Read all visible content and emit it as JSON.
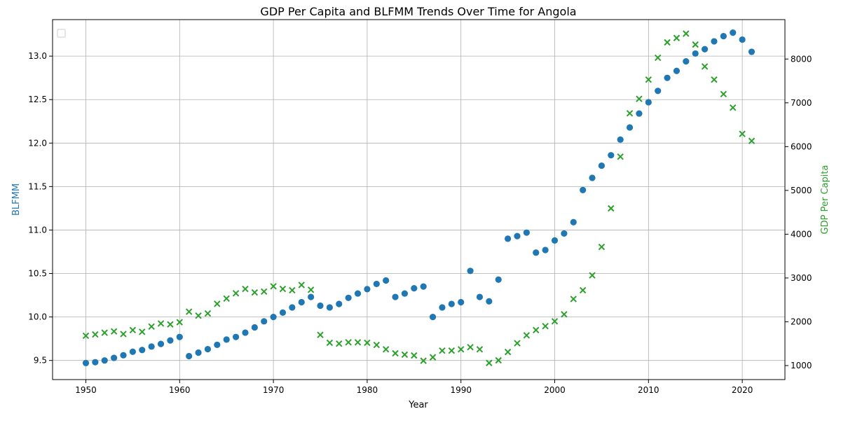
{
  "chart_data": {
    "type": "scatter",
    "title": "GDP Per Capita and BLFMM Trends Over Time for Angola",
    "xlabel": "Year",
    "ylabel_left": "BLFMM",
    "ylabel_right": "GDP Per Capita",
    "xlim": [
      1946.45,
      2124.55
    ],
    "ylim_left": [
      9.28,
      13.42
    ],
    "ylim_right": [
      680,
      8900
    ],
    "x_ticks": [
      1950,
      1960,
      1970,
      1980,
      1990,
      2000,
      2010,
      2020
    ],
    "y_left_ticks": [
      9.5,
      10.0,
      10.5,
      11.0,
      11.5,
      12.0,
      12.5,
      13.0
    ],
    "y_right_ticks": [
      1000,
      2000,
      3000,
      4000,
      5000,
      6000,
      7000,
      8000
    ],
    "grid": true,
    "legend": "top-left (empty)",
    "colors": {
      "blfmm": "#1f77b4",
      "gdp": "#2ca02c"
    },
    "series": [
      {
        "axis": "left",
        "marker": "circle",
        "x": [
          1950,
          1951,
          1952,
          1953,
          1954,
          1955,
          1956,
          1957,
          1958,
          1959,
          1960,
          1961,
          1962,
          1963,
          1964,
          1965,
          1966,
          1967,
          1968,
          1969,
          1970,
          1971,
          1972,
          1973,
          1974,
          1975,
          1976,
          1977,
          1978,
          1979,
          1980,
          1981,
          1982,
          1983,
          1984,
          1985,
          1986,
          1987,
          1988,
          1989,
          1990,
          1991,
          1992,
          1993,
          1994,
          1995,
          1996,
          1997,
          1998,
          1999,
          2000,
          2001,
          2002,
          2003,
          2004,
          2005,
          2006,
          2007,
          2008,
          2009,
          2010,
          2011,
          2012,
          2013,
          2014,
          2015,
          2016,
          2017,
          2018,
          2019,
          2020,
          2021
        ],
        "values": [
          9.47,
          9.48,
          9.5,
          9.53,
          9.56,
          9.6,
          9.62,
          9.66,
          9.69,
          9.73,
          9.77,
          9.55,
          9.59,
          9.63,
          9.68,
          9.74,
          9.77,
          9.82,
          9.88,
          9.95,
          10.0,
          10.05,
          10.11,
          10.17,
          10.23,
          10.13,
          10.11,
          10.15,
          10.22,
          10.27,
          10.32,
          10.38,
          10.42,
          10.23,
          10.27,
          10.33,
          10.35,
          10.0,
          10.11,
          10.15,
          10.17,
          10.53,
          10.23,
          10.18,
          10.43,
          10.9,
          10.93,
          10.97,
          10.74,
          10.77,
          10.88,
          10.96,
          11.09,
          11.46,
          11.6,
          11.74,
          11.86,
          12.04,
          12.18,
          12.34,
          12.47,
          12.6,
          12.75,
          12.83,
          12.94,
          13.03,
          13.08,
          13.17,
          13.23,
          13.27,
          13.19,
          13.05
        ]
      },
      {
        "axis": "right",
        "marker": "x",
        "x": [
          1950,
          1951,
          1952,
          1953,
          1954,
          1955,
          1956,
          1957,
          1958,
          1959,
          1960,
          1961,
          1962,
          1963,
          1964,
          1965,
          1966,
          1967,
          1968,
          1969,
          1970,
          1971,
          1972,
          1973,
          1974,
          1975,
          1976,
          1977,
          1978,
          1979,
          1980,
          1981,
          1982,
          1983,
          1984,
          1985,
          1986,
          1987,
          1988,
          1989,
          1990,
          1991,
          1992,
          1993,
          1994,
          1995,
          1996,
          1997,
          1998,
          1999,
          2000,
          2001,
          2002,
          2003,
          2004,
          2005,
          2006,
          2007,
          2008,
          2009,
          2010,
          2011,
          2012,
          2013,
          2014,
          2015,
          2016,
          2017,
          2018,
          2019,
          2020,
          2021
        ],
        "values": [
          1680,
          1710,
          1750,
          1780,
          1720,
          1810,
          1770,
          1890,
          1960,
          1940,
          1990,
          2230,
          2140,
          2190,
          2410,
          2530,
          2650,
          2750,
          2670,
          2690,
          2810,
          2750,
          2720,
          2840,
          2730,
          1700,
          1520,
          1500,
          1530,
          1530,
          1520,
          1470,
          1370,
          1280,
          1250,
          1230,
          1110,
          1190,
          1340,
          1340,
          1370,
          1420,
          1370,
          1060,
          1120,
          1310,
          1510,
          1690,
          1810,
          1900,
          2010,
          2170,
          2520,
          2720,
          3060,
          3710,
          4590,
          5770,
          6760,
          7090,
          7530,
          8030,
          8380,
          8480,
          8580,
          8330,
          7830,
          7530,
          7200,
          6890,
          6290,
          6130
        ]
      }
    ]
  }
}
